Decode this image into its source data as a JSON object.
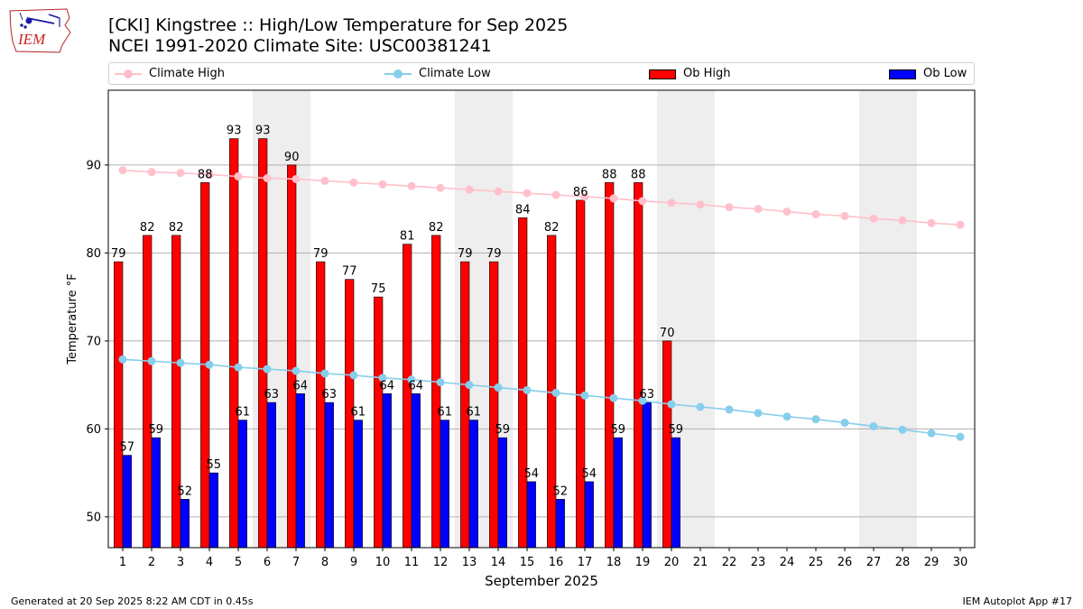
{
  "header": {
    "title_line1": "[CKI] Kingstree :: High/Low Temperature for Sep 2025",
    "title_line2": "NCEI 1991-2020 Climate Site: USC00381241",
    "logo_text": "IEM"
  },
  "legend": {
    "climate_high": "Climate High",
    "climate_low": "Climate Low",
    "ob_high": "Ob High",
    "ob_low": "Ob Low"
  },
  "colors": {
    "climate_high": "#ffc0cb",
    "climate_low": "#87ceeb",
    "ob_high": "#ff0000",
    "ob_low": "#0000ff",
    "weekend_band": "#eeeeee",
    "grid": "#b0b0b0"
  },
  "footer": {
    "left": "Generated at 20 Sep 2025 8:22 AM CDT in 0.45s",
    "right": "IEM Autoplot App #17"
  },
  "chart_data": {
    "type": "bar",
    "title": "[CKI] Kingstree :: High/Low Temperature for Sep 2025",
    "xlabel": "September 2025",
    "ylabel": "Temperature °F",
    "days": [
      1,
      2,
      3,
      4,
      5,
      6,
      7,
      8,
      9,
      10,
      11,
      12,
      13,
      14,
      15,
      16,
      17,
      18,
      19,
      20,
      21,
      22,
      23,
      24,
      25,
      26,
      27,
      28,
      29,
      30
    ],
    "ylim": [
      46.5,
      98.5
    ],
    "yticks": [
      50,
      60,
      70,
      80,
      90
    ],
    "weekend_days": [
      6,
      7,
      13,
      14,
      20,
      21,
      27,
      28
    ],
    "series": [
      {
        "name": "Ob High",
        "kind": "bar",
        "values": [
          79,
          82,
          82,
          88,
          93,
          93,
          90,
          79,
          77,
          75,
          81,
          82,
          79,
          79,
          84,
          82,
          86,
          88,
          88,
          70
        ]
      },
      {
        "name": "Ob Low",
        "kind": "bar",
        "values": [
          57,
          59,
          52,
          55,
          61,
          63,
          64,
          63,
          61,
          64,
          64,
          61,
          61,
          59,
          54,
          52,
          54,
          59,
          63,
          59
        ]
      },
      {
        "name": "Climate High",
        "kind": "line",
        "values": [
          89.4,
          89.2,
          89.1,
          88.9,
          88.7,
          88.5,
          88.4,
          88.2,
          88.0,
          87.8,
          87.6,
          87.4,
          87.2,
          87.0,
          86.8,
          86.6,
          86.4,
          86.2,
          85.9,
          85.7,
          85.5,
          85.2,
          85.0,
          84.7,
          84.4,
          84.2,
          83.9,
          83.7,
          83.4,
          83.2
        ]
      },
      {
        "name": "Climate Low",
        "kind": "line",
        "values": [
          67.9,
          67.7,
          67.5,
          67.3,
          67.0,
          66.8,
          66.6,
          66.3,
          66.1,
          65.8,
          65.6,
          65.3,
          65.0,
          64.7,
          64.4,
          64.1,
          63.8,
          63.5,
          63.2,
          62.8,
          62.5,
          62.2,
          61.8,
          61.4,
          61.1,
          60.7,
          60.3,
          59.9,
          59.5,
          59.1
        ]
      }
    ],
    "grid": "horizontal",
    "legend_position": "top"
  }
}
